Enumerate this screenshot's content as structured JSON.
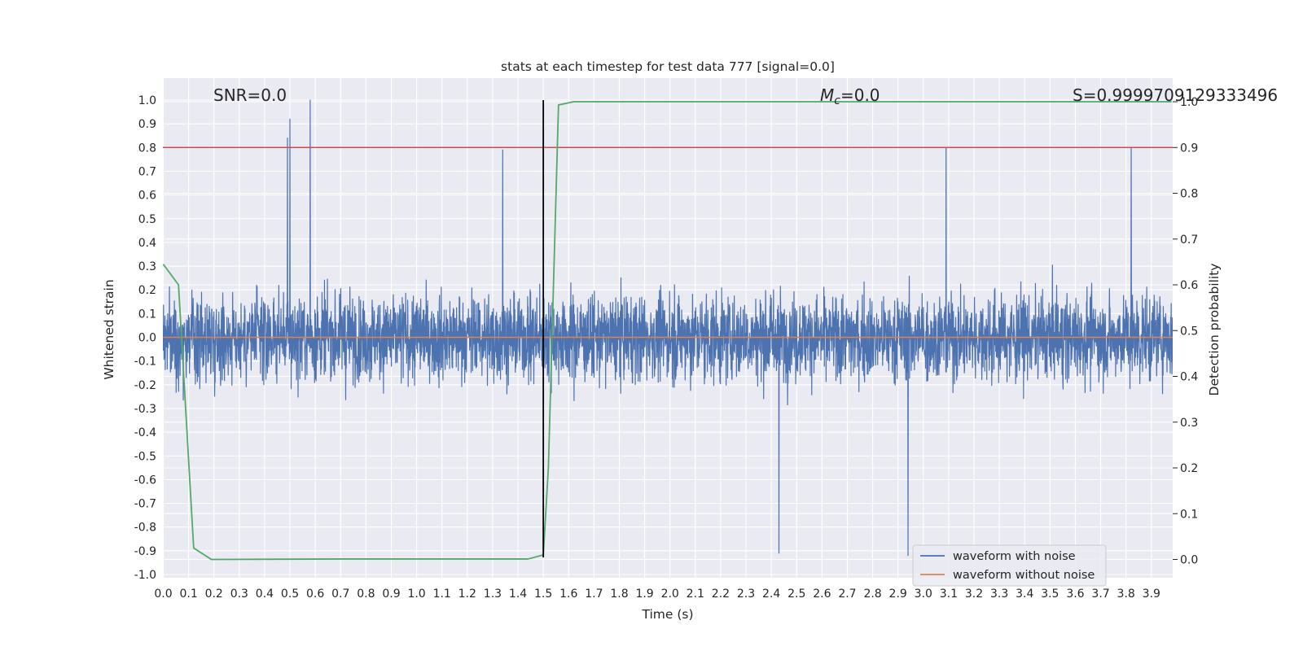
{
  "chart_data": {
    "type": "line",
    "title": "stats at each timestep for test data 777 [signal=0.0]",
    "xlabel": "Time (s)",
    "ylabel": "Whitened strain",
    "y2label": "Detection probability",
    "xlim": [
      0.0,
      4.0
    ],
    "ylim": [
      -1.05,
      1.05
    ],
    "y2lim": [
      -0.05,
      1.0
    ],
    "x_ticks": [
      "0.0",
      "0.1",
      "0.2",
      "0.3",
      "0.4",
      "0.5",
      "0.6",
      "0.7",
      "0.8",
      "0.9",
      "1.0",
      "1.1",
      "1.2",
      "1.3",
      "1.4",
      "1.5",
      "1.6",
      "1.7",
      "1.8",
      "1.9",
      "2.0",
      "2.1",
      "2.2",
      "2.3",
      "2.4",
      "2.5",
      "2.6",
      "2.7",
      "2.8",
      "2.9",
      "3.0",
      "3.1",
      "3.2",
      "3.3",
      "3.4",
      "3.5",
      "3.6",
      "3.7",
      "3.8",
      "3.9"
    ],
    "y_ticks": [
      "1.0",
      "0.9",
      "0.8",
      "0.7",
      "0.6",
      "0.5",
      "0.4",
      "0.3",
      "0.2",
      "0.1",
      "0.0",
      "-0.1",
      "-0.2",
      "-0.3",
      "-0.4",
      "-0.5",
      "-0.6",
      "-0.7",
      "-0.8",
      "-0.9",
      "-1.0"
    ],
    "y2_ticks": [
      "1.0",
      "0.9",
      "0.8",
      "0.7",
      "0.6",
      "0.5",
      "0.4",
      "0.3",
      "0.2",
      "0.1",
      "0.0"
    ],
    "legend": [
      "waveform with noise",
      "waveform without noise"
    ],
    "legend_position": "lower-right",
    "annotations": {
      "snr": "SNR=0.0",
      "mc_symbol": "M",
      "mc_sub": "c",
      "mc_value": "=0.0",
      "s": "S=0.9999709129333496"
    },
    "series": [
      {
        "name": "waveform with noise",
        "color": "#4c72b0",
        "description": "dense noisy strain, amplitude mostly within ±0.5, peaks near 1.0 at 0.58 s",
        "peaks": [
          [
            0.58,
            1.0
          ],
          [
            0.5,
            0.92
          ],
          [
            0.49,
            0.84
          ],
          [
            1.34,
            0.79
          ],
          [
            3.09,
            0.8
          ],
          [
            3.82,
            0.8
          ],
          [
            2.94,
            -0.92
          ],
          [
            2.43,
            -0.91
          ]
        ]
      },
      {
        "name": "waveform without noise",
        "color": "#dd8452",
        "x": [
          0.0,
          4.0
        ],
        "values": [
          0.0,
          0.0
        ]
      },
      {
        "name": "detection probability",
        "axis": "right",
        "color": "#55a868",
        "x": [
          0.0,
          0.06,
          0.12,
          0.19,
          0.7,
          1.44,
          1.5,
          1.52,
          1.56,
          1.62,
          3.98
        ],
        "values": [
          0.645,
          0.6,
          0.025,
          0.0,
          0.001,
          0.001,
          0.01,
          0.2,
          0.993,
          1.0,
          1.0
        ]
      }
    ],
    "threshold": {
      "axis": "right",
      "value": 0.9,
      "color": "#c44e52"
    },
    "marker_line": {
      "x": 1.5,
      "color": "#000000"
    }
  }
}
